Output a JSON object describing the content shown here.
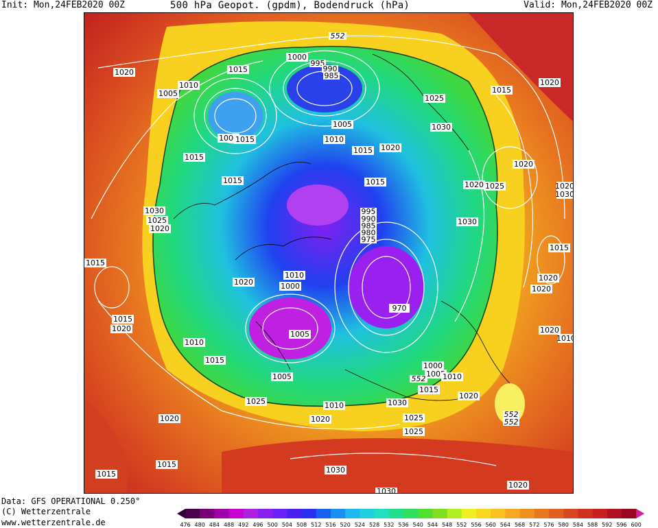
{
  "header": {
    "init": "Init: Mon,24FEB2020 00Z",
    "title": "500 hPa Geopot. (gpdm), Bodendruck (hPa)",
    "valid": "Valid: Mon,24FEB2020 00Z"
  },
  "footer": {
    "line1": "Data: GFS OPERATIONAL 0.250°",
    "line2": "(C) Wetterzentrale",
    "line3": "www.wetterzentrale.de"
  },
  "colorbar": {
    "ticks": [
      "476",
      "480",
      "484",
      "488",
      "492",
      "496",
      "500",
      "504",
      "508",
      "512",
      "516",
      "520",
      "524",
      "528",
      "532",
      "536",
      "540",
      "544",
      "548",
      "552",
      "556",
      "560",
      "564",
      "568",
      "572",
      "576",
      "580",
      "584",
      "588",
      "592",
      "596",
      "600"
    ],
    "colors": [
      "#4a0048",
      "#7a0078",
      "#a000a8",
      "#c800d0",
      "#b020e0",
      "#8a20f0",
      "#6a20f8",
      "#4a20f0",
      "#2a30f0",
      "#1860f0",
      "#1890f0",
      "#20b8f0",
      "#20d0e0",
      "#20e0c0",
      "#20e090",
      "#30e060",
      "#50e030",
      "#80e020",
      "#b0f020",
      "#f0f020",
      "#f8d820",
      "#f8c020",
      "#f8a820",
      "#f09020",
      "#e87820",
      "#e06020",
      "#d84820",
      "#d03020",
      "#c82020",
      "#b01020",
      "#980820"
    ]
  },
  "isobars": [
    "1020",
    "1015",
    "1010",
    "1005",
    "1000",
    "1015",
    "1000",
    "995",
    "990",
    "985",
    "552",
    "1025",
    "1030",
    "1015",
    "1020",
    "1005",
    "1010",
    "1015",
    "1020",
    "1015",
    "1030",
    "1025",
    "1020",
    "1030",
    "1025",
    "1020",
    "1015",
    "995",
    "990",
    "985",
    "980",
    "975",
    "1010",
    "1000",
    "1020",
    "970",
    "1015",
    "1020",
    "1010",
    "1005",
    "1015",
    "1005",
    "1025",
    "1010",
    "1020",
    "1030",
    "1025",
    "1000",
    "1005",
    "1010",
    "552",
    "1015",
    "1020",
    "1020",
    "1015",
    "1030",
    "1020",
    "1015",
    "1020",
    "1030",
    "1020",
    "1015",
    "1020",
    "1010",
    "1015",
    "1020",
    "1025",
    "1030",
    "1020",
    "1015",
    "552",
    "552"
  ]
}
